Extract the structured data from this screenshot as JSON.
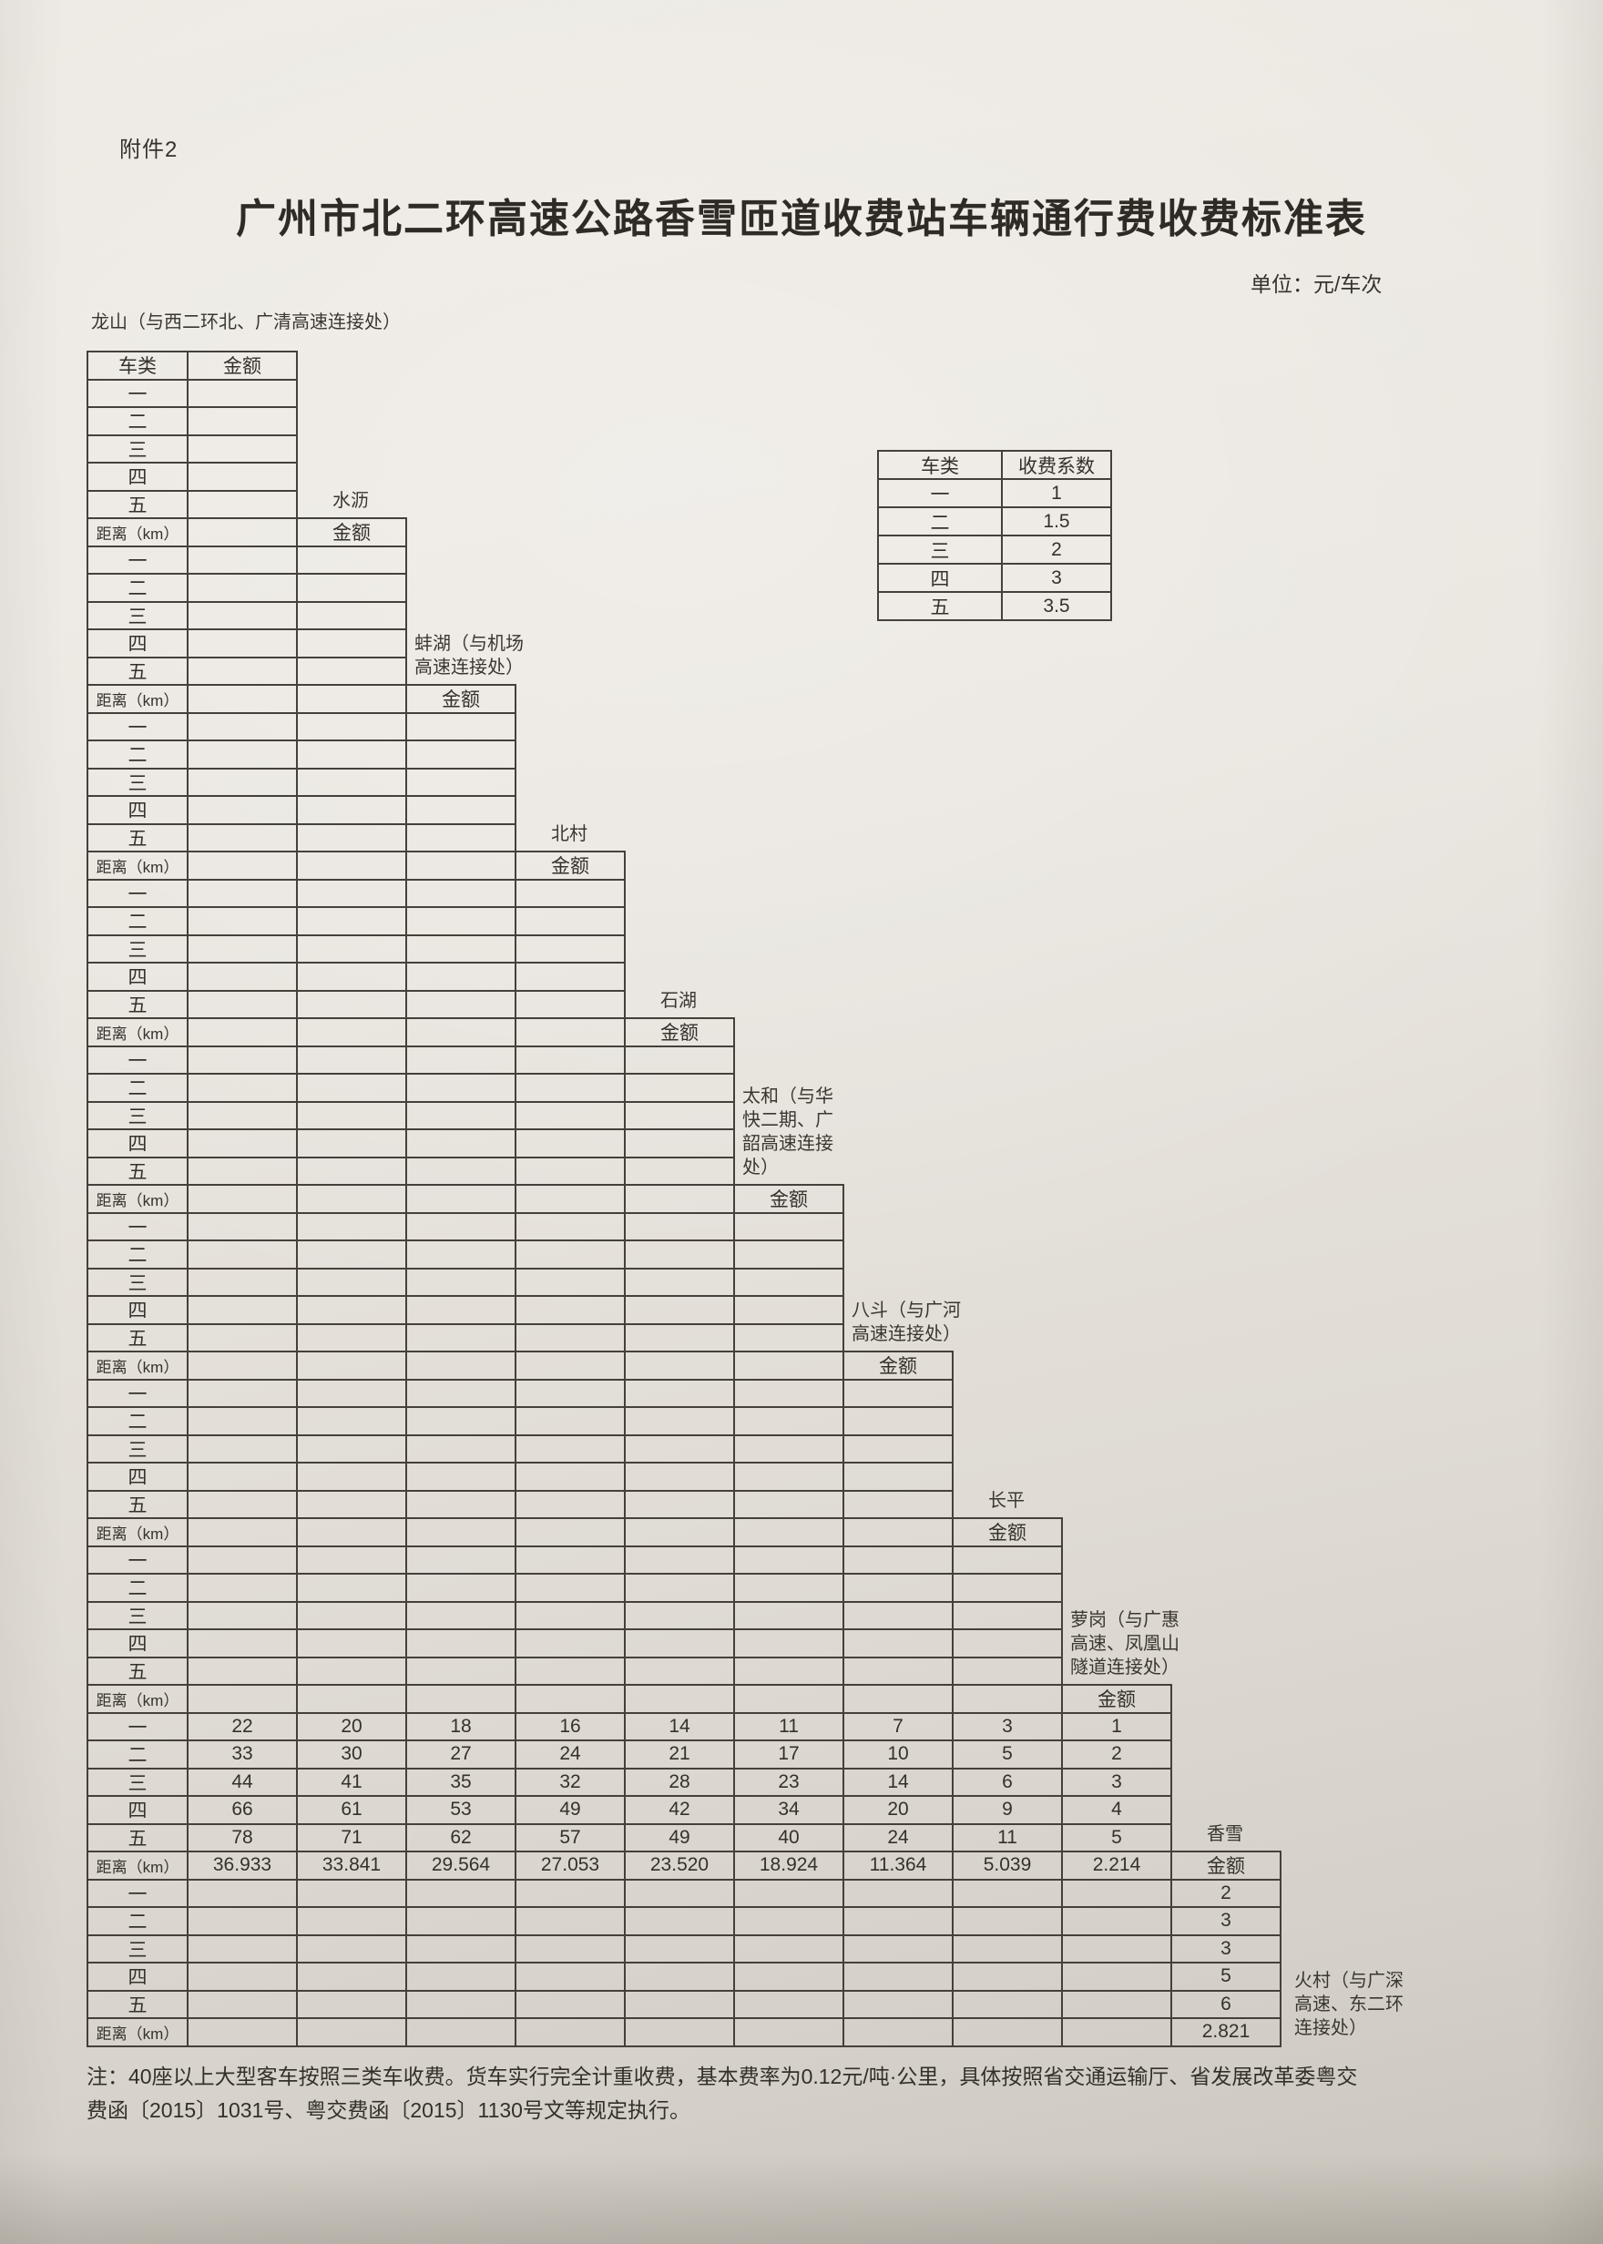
{
  "page": {
    "attachment": "附件2",
    "title": "广州市北二环高速公路香雪匝道收费站车辆通行费收费标准表",
    "unit": "单位：元/车次"
  },
  "coefficient_table": {
    "headers": [
      "车类",
      "收费系数"
    ],
    "rows": [
      [
        "一",
        "1"
      ],
      [
        "二",
        "1.5"
      ],
      [
        "三",
        "2"
      ],
      [
        "四",
        "3"
      ],
      [
        "五",
        "3.5"
      ]
    ]
  },
  "toll_matrix": {
    "corner_header": "车类",
    "amount_header": "金额",
    "distance_label": "距离（km）",
    "class_labels": [
      "一",
      "二",
      "三",
      "四",
      "五"
    ],
    "stations": [
      {
        "name": "龙山",
        "label_lines": [
          "龙山（与西二环北、广清高速连接处）"
        ]
      },
      {
        "name": "水沥",
        "label_lines": [
          "水沥"
        ]
      },
      {
        "name": "蚌湖",
        "label_lines": [
          "蚌湖（与机场",
          "高速连接处）"
        ]
      },
      {
        "name": "北村",
        "label_lines": [
          "北村"
        ]
      },
      {
        "name": "石湖",
        "label_lines": [
          "石湖"
        ]
      },
      {
        "name": "太和",
        "label_lines": [
          "太和（与华",
          "快二期、广",
          "韶高速连接",
          "处）"
        ]
      },
      {
        "name": "八斗",
        "label_lines": [
          "八斗（与广河",
          "高速连接处）"
        ]
      },
      {
        "name": "长平",
        "label_lines": [
          "长平"
        ]
      },
      {
        "name": "萝岗",
        "label_lines": [
          "萝岗（与广惠",
          "高速、凤凰山",
          "隧道连接处）"
        ]
      },
      {
        "name": "香雪",
        "label_lines": [
          "香雪"
        ]
      }
    ],
    "fee_rows": [
      {
        "vehicle_class": "一",
        "values": [
          "22",
          "20",
          "18",
          "16",
          "14",
          "11",
          "7",
          "3",
          "1"
        ]
      },
      {
        "vehicle_class": "二",
        "values": [
          "33",
          "30",
          "27",
          "24",
          "21",
          "17",
          "10",
          "5",
          "2"
        ]
      },
      {
        "vehicle_class": "三",
        "values": [
          "44",
          "41",
          "35",
          "32",
          "28",
          "23",
          "14",
          "6",
          "3"
        ]
      },
      {
        "vehicle_class": "四",
        "values": [
          "66",
          "61",
          "53",
          "49",
          "42",
          "34",
          "20",
          "9",
          "4"
        ]
      },
      {
        "vehicle_class": "五",
        "values": [
          "78",
          "71",
          "62",
          "57",
          "49",
          "40",
          "24",
          "11",
          "5"
        ]
      }
    ],
    "distance_row": [
      "36.933",
      "33.841",
      "29.564",
      "27.053",
      "23.520",
      "18.924",
      "11.364",
      "5.039",
      "2.214"
    ],
    "xiangxue_column": {
      "fees": [
        "2",
        "3",
        "3",
        "5",
        "6"
      ],
      "distance": "2.821"
    },
    "huocun_label_lines": [
      "火村（与广深",
      "高速、东二环",
      "连接处）"
    ]
  },
  "note_lines": [
    "注：40座以上大型客车按照三类车收费。货车实行完全计重收费，基本费率为0.12元/吨·公里，具体按照省交通运输厅、省发展改革委粤交",
    "费函〔2015〕1031号、粤交费函〔2015〕1130号文等规定执行。"
  ]
}
